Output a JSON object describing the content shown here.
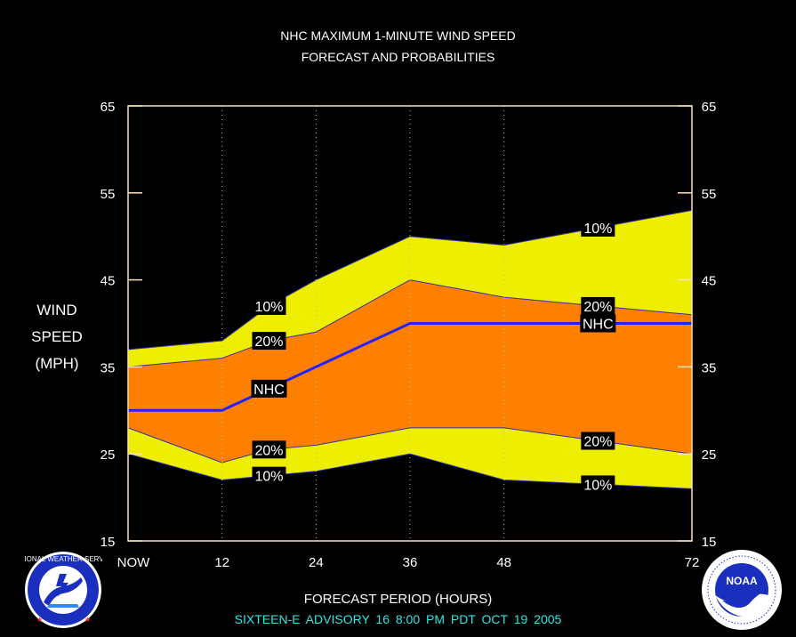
{
  "header": {
    "title_line1": "NHC MAXIMUM 1-MINUTE WIND SPEED",
    "title_line2": "FORECAST AND PROBABILITIES"
  },
  "y_axis_label": [
    "WIND",
    "SPEED",
    "(MPH)"
  ],
  "x_axis_label": "FORECAST PERIOD (HOURS)",
  "advisory": "SIXTEEN-E   ADVISORY  16 8:00  PM  PDT  OCT  19  2005",
  "logos": {
    "left_text": "NATIONAL WEATHER SERVICE",
    "right_text": "NOAA",
    "right_ring_text": "NATIONAL OCEANIC AND ATMOSPHERIC ADMINISTRATION · U.S. DEPARTMENT OF COMMERCE"
  },
  "colors": {
    "outer_band": "#eeee00",
    "inner_band": "#ff8000",
    "nhc_line": "#2222ff",
    "frame": "#ffe0c0",
    "advisory_text": "#2ee6e6"
  },
  "chart_data": {
    "type": "area",
    "x": [
      0,
      12,
      18,
      24,
      36,
      48,
      60,
      72
    ],
    "x_ticks": [
      0,
      12,
      24,
      36,
      48,
      72
    ],
    "x_tick_labels": [
      "NOW",
      "12",
      "24",
      "36",
      "48",
      "72"
    ],
    "xlim": [
      0,
      72
    ],
    "y_ticks": [
      15,
      25,
      35,
      45,
      55,
      65
    ],
    "ylim": [
      15,
      65
    ],
    "series": [
      {
        "name": "10%",
        "values": [
          37,
          38,
          42,
          45,
          50,
          49,
          51,
          53
        ]
      },
      {
        "name": "20%",
        "values": [
          35,
          36,
          38,
          39,
          45,
          43,
          42,
          41
        ]
      },
      {
        "name": "NHC",
        "values": [
          30,
          30,
          32.5,
          35,
          40,
          40,
          40,
          40
        ]
      },
      {
        "name": "20%",
        "values": [
          28,
          24,
          25.5,
          26,
          28,
          28,
          26.5,
          25
        ]
      },
      {
        "name": "10%",
        "values": [
          25,
          22,
          22.5,
          23,
          25,
          22,
          21.5,
          21
        ]
      }
    ],
    "series_labels": [
      {
        "text": "10%",
        "series": 0,
        "x": 18
      },
      {
        "text": "20%",
        "series": 1,
        "x": 18
      },
      {
        "text": "NHC",
        "series": 2,
        "x": 18
      },
      {
        "text": "20%",
        "series": 3,
        "x": 18
      },
      {
        "text": "10%",
        "series": 4,
        "x": 18
      },
      {
        "text": "10%",
        "series": 0,
        "x": 60
      },
      {
        "text": "20%",
        "series": 1,
        "x": 60
      },
      {
        "text": "NHC",
        "series": 2,
        "x": 60
      },
      {
        "text": "20%",
        "series": 3,
        "x": 60
      },
      {
        "text": "10%",
        "series": 4,
        "x": 60
      }
    ],
    "grid": "dotted vertical at x ticks"
  }
}
